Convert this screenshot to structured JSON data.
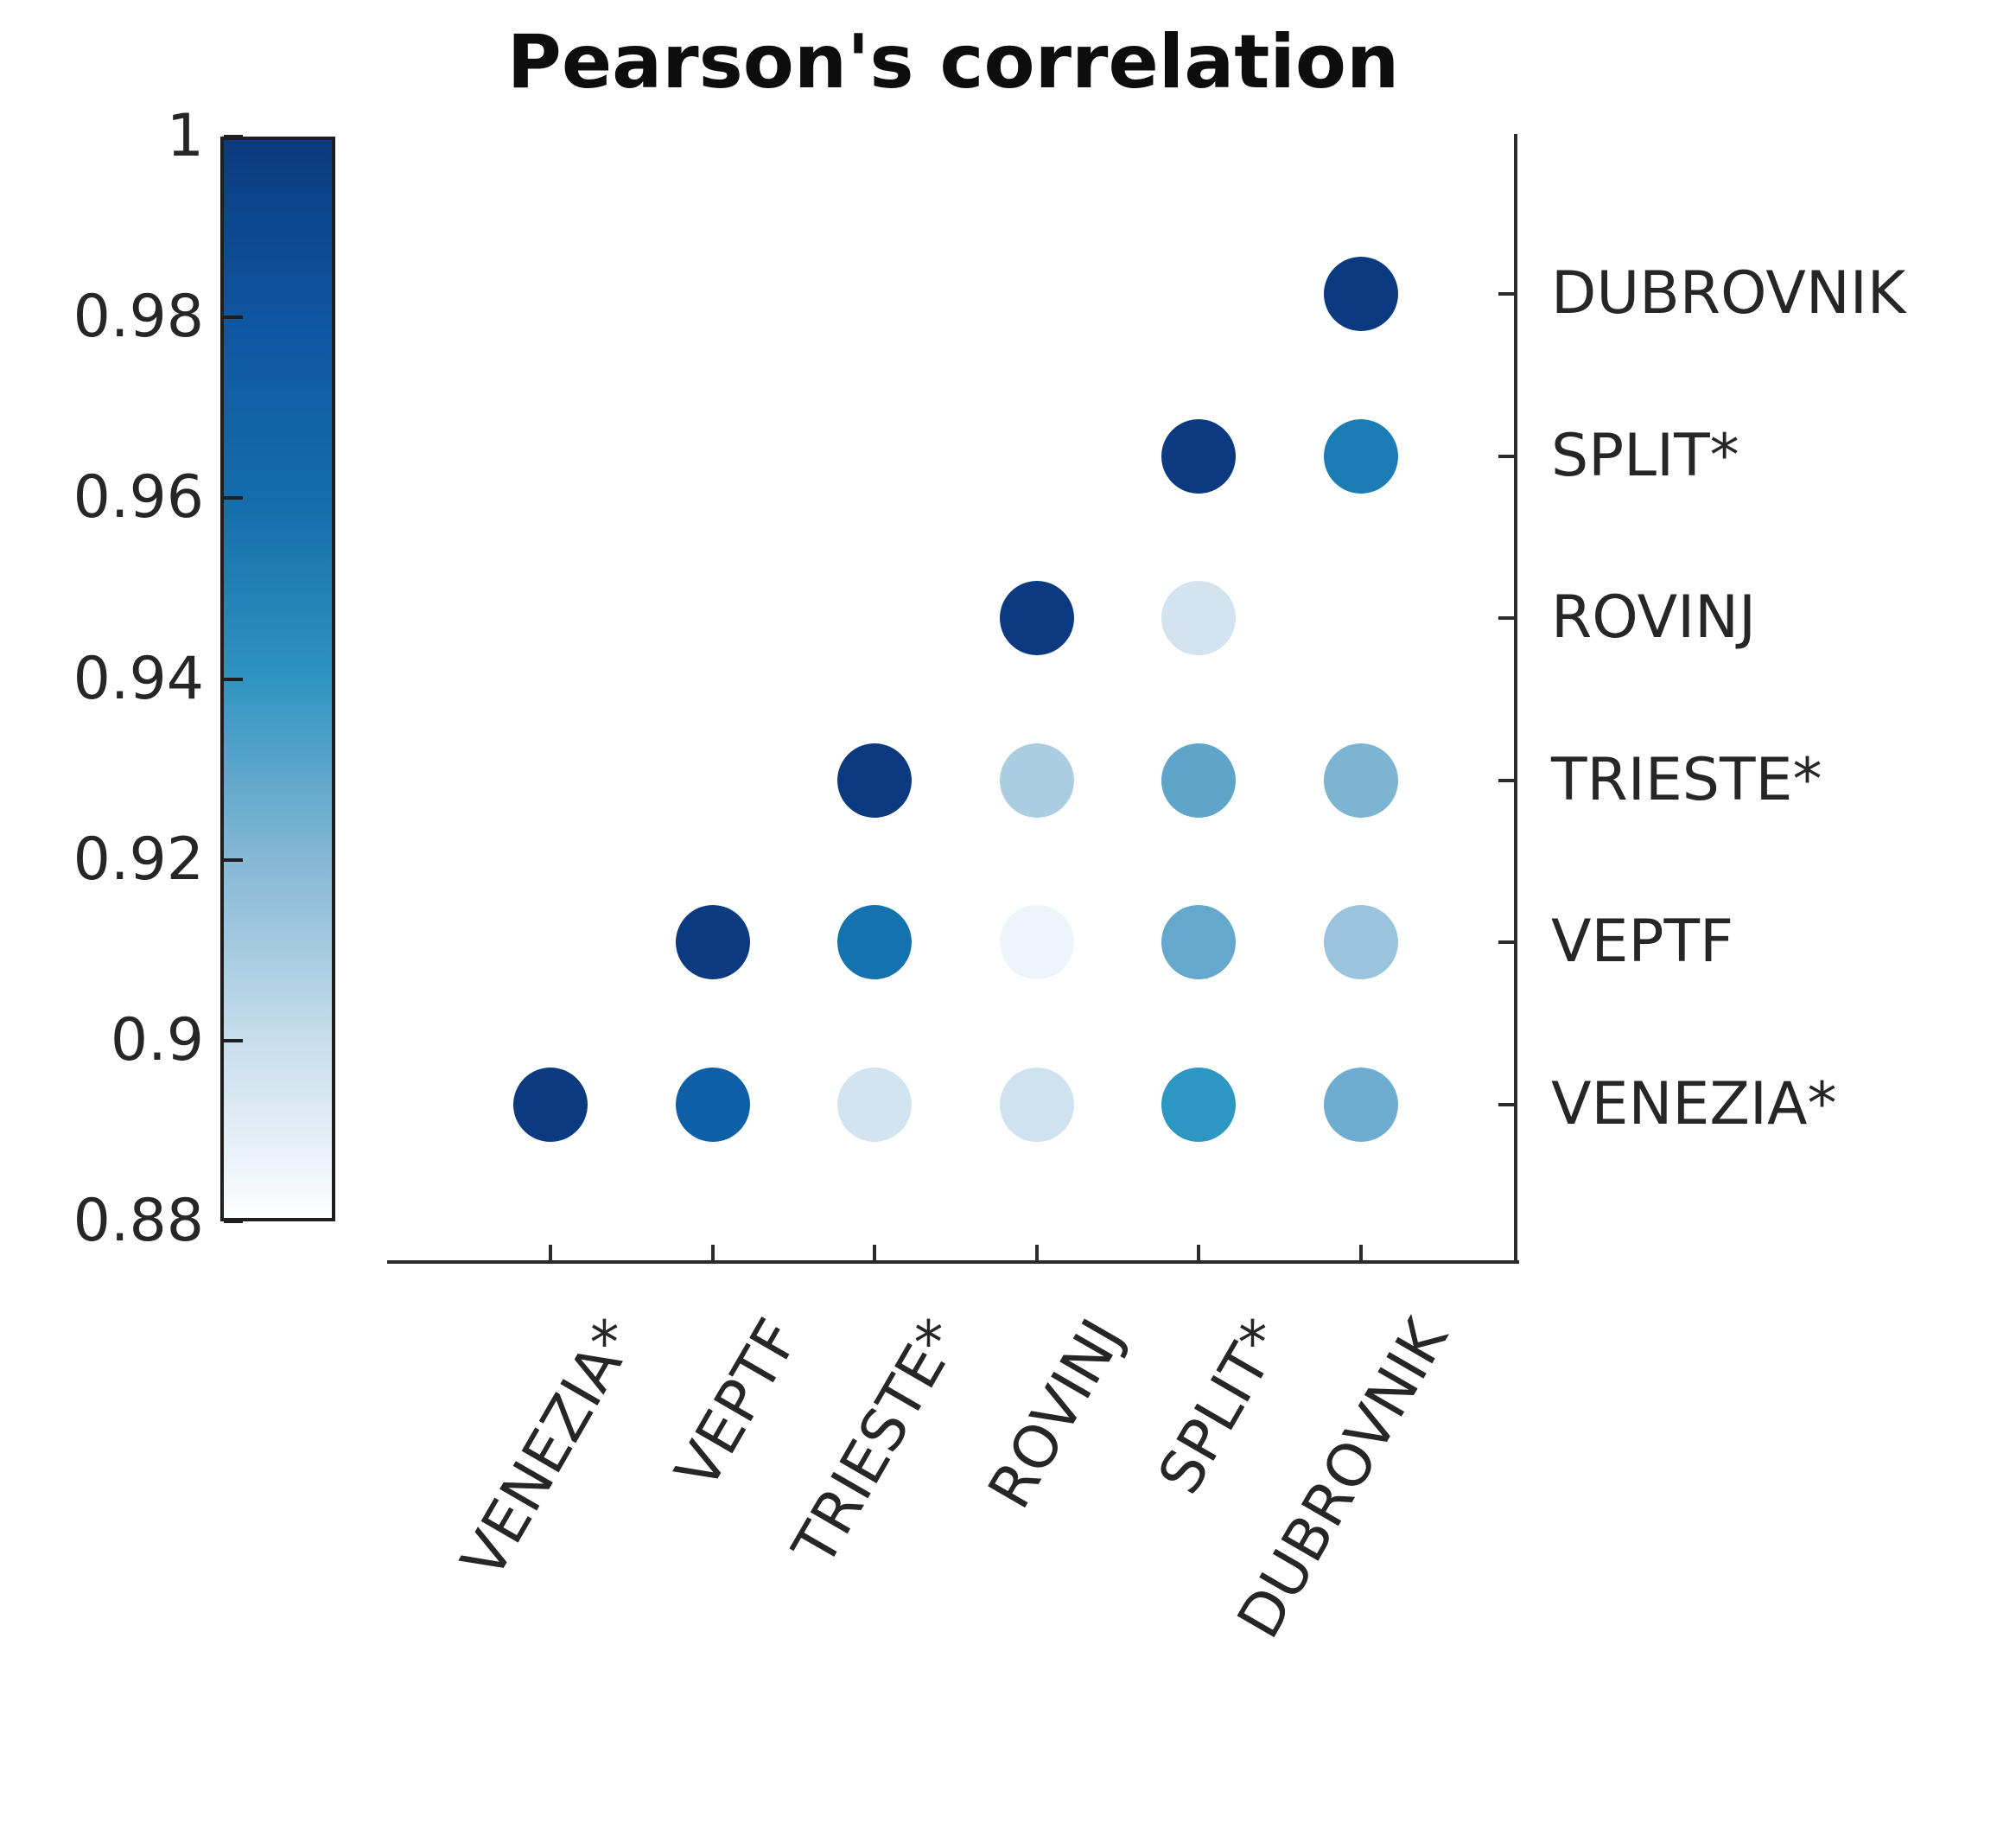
{
  "title": "Pearson's correlation",
  "stations": [
    "VENEZIA*",
    "VEPTF",
    "TRIESTE*",
    "ROVINJ",
    "SPLIT*",
    "DUBROVNIK"
  ],
  "colorbar": {
    "min": 0.88,
    "max": 1.0,
    "tick_labels": [
      "1",
      "0.98",
      "0.96",
      "0.94",
      "0.92",
      "0.9",
      "0.88"
    ],
    "gradient_stops_top_to_bottom": [
      "#0b3a80",
      "#0e56a0",
      "#156cab",
      "#2f94c1",
      "#85b8d5",
      "#c6ddec",
      "#fdfeff"
    ]
  },
  "colors": {
    "axis": "#2b2b2b",
    "text": "#262626",
    "title": "#0d0d0d",
    "background": "#ffffff",
    "diagonal_dot": "#0b3a80"
  },
  "chart_data": {
    "type": "scatter",
    "subtype": "correlation-matrix-bubble",
    "title": "Pearson's correlation",
    "x_categories": [
      "VENEZIA*",
      "VEPTF",
      "TRIESTE*",
      "ROVINJ",
      "SPLIT*",
      "DUBROVNIK"
    ],
    "y_categories_bottom_to_top": [
      "VENEZIA*",
      "VEPTF",
      "TRIESTE*",
      "ROVINJ",
      "SPLIT*",
      "DUBROVNIK"
    ],
    "colorbar_range": [
      0.88,
      1.0
    ],
    "legend_position": "left",
    "grid": false,
    "note": "Only upper-triangle pairs (plus diagonal) are drawn; ROVINJ-DUBROVNIK pair has no dot. Values estimated from colorbar.",
    "points": [
      {
        "x": "VENEZIA*",
        "y": "VENEZIA*",
        "value": 1.0,
        "color": "#0b3a80"
      },
      {
        "x": "VEPTF",
        "y": "VENEZIA*",
        "value": 0.97,
        "color": "#0f5fa6"
      },
      {
        "x": "TRIESTE*",
        "y": "VENEZIA*",
        "value": 0.896,
        "color": "#d2e4f0"
      },
      {
        "x": "ROVINJ",
        "y": "VENEZIA*",
        "value": 0.895,
        "color": "#cfe2ef"
      },
      {
        "x": "SPLIT*",
        "y": "VENEZIA*",
        "value": 0.94,
        "color": "#2e96c3"
      },
      {
        "x": "DUBROVNIK",
        "y": "VENEZIA*",
        "value": 0.924,
        "color": "#6fadd0"
      },
      {
        "x": "VEPTF",
        "y": "VEPTF",
        "value": 1.0,
        "color": "#0b3a80"
      },
      {
        "x": "TRIESTE*",
        "y": "VEPTF",
        "value": 0.961,
        "color": "#1472ae"
      },
      {
        "x": "ROVINJ",
        "y": "VEPTF",
        "value": 0.883,
        "color": "#eef5fa"
      },
      {
        "x": "SPLIT*",
        "y": "VEPTF",
        "value": 0.926,
        "color": "#66a8cd"
      },
      {
        "x": "DUBROVNIK",
        "y": "VEPTF",
        "value": 0.912,
        "color": "#9ac4dd"
      },
      {
        "x": "TRIESTE*",
        "y": "TRIESTE*",
        "value": 1.0,
        "color": "#0b3a80"
      },
      {
        "x": "ROVINJ",
        "y": "TRIESTE*",
        "value": 0.907,
        "color": "#abcde2"
      },
      {
        "x": "SPLIT*",
        "y": "TRIESTE*",
        "value": 0.927,
        "color": "#5ea5c9"
      },
      {
        "x": "DUBROVNIK",
        "y": "TRIESTE*",
        "value": 0.919,
        "color": "#7db4d2"
      },
      {
        "x": "ROVINJ",
        "y": "ROVINJ",
        "value": 1.0,
        "color": "#0b3a80"
      },
      {
        "x": "SPLIT*",
        "y": "ROVINJ",
        "value": 0.896,
        "color": "#d3e4f0"
      },
      {
        "x": "SPLIT*",
        "y": "SPLIT*",
        "value": 1.0,
        "color": "#0b3a80"
      },
      {
        "x": "DUBROVNIK",
        "y": "SPLIT*",
        "value": 0.958,
        "color": "#1b7cb5"
      },
      {
        "x": "DUBROVNIK",
        "y": "DUBROVNIK",
        "value": 1.0,
        "color": "#0b3a80"
      }
    ]
  }
}
